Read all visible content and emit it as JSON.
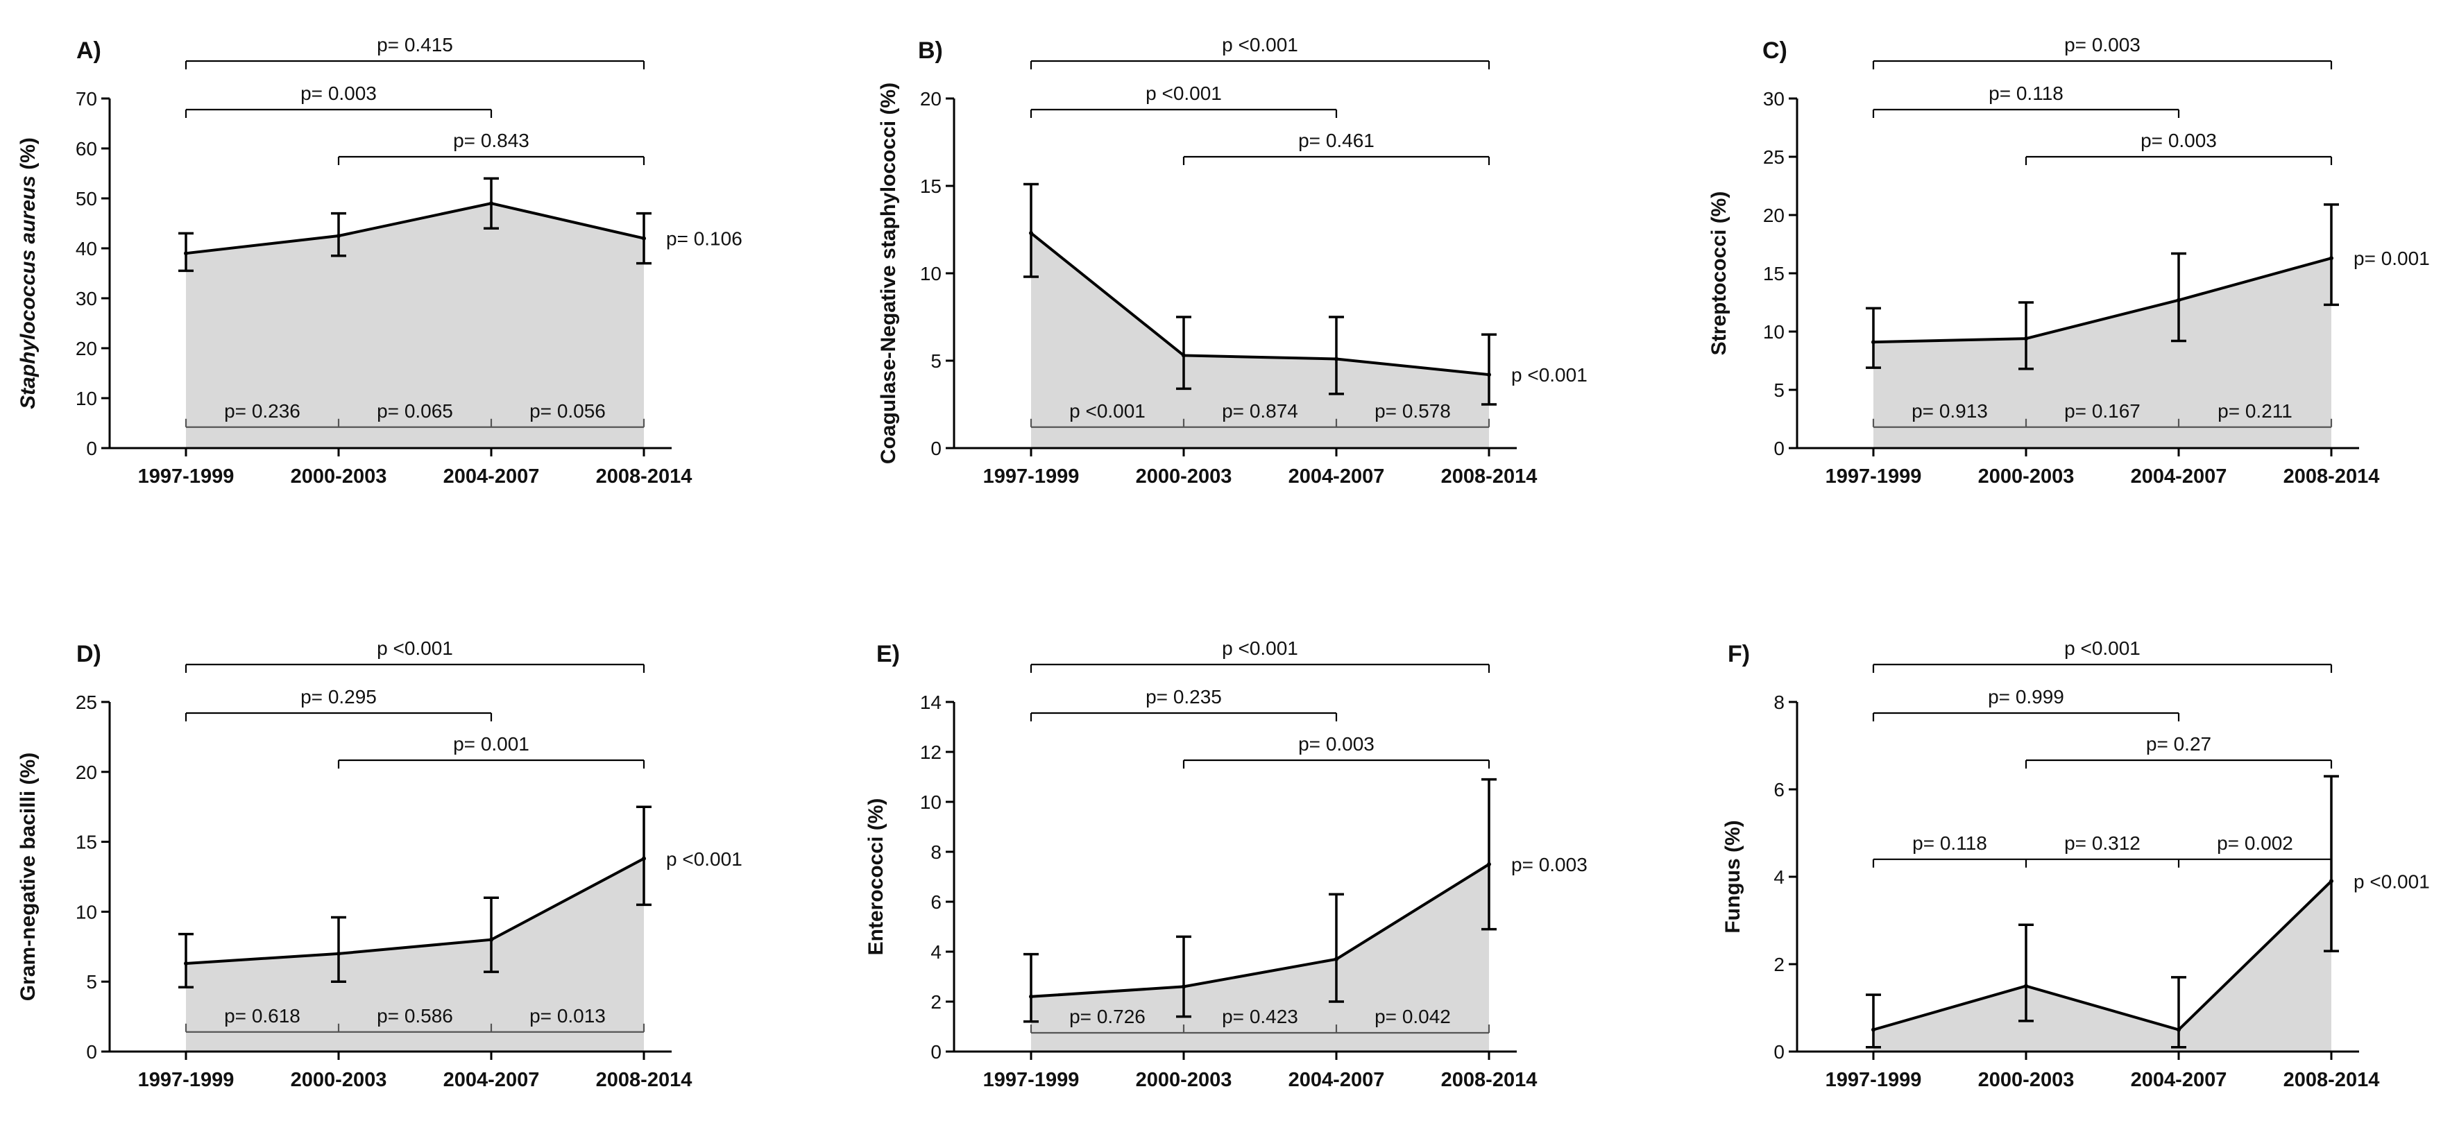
{
  "chart_data": [
    {
      "type": "area",
      "panel": "A)",
      "ylabel": "Staphylococcus aureus (%)",
      "ylabel_italic_part": "Staphylococcus aureus",
      "ylabel_rest": " (%)",
      "ylim": [
        0,
        70
      ],
      "yticks": [
        0,
        10,
        20,
        30,
        40,
        50,
        60,
        70
      ],
      "categories": [
        "1997-1999",
        "2000-2003",
        "2004-2007",
        "2008-2014"
      ],
      "values": [
        39,
        42.5,
        49,
        42
      ],
      "err_low": [
        35.5,
        38.5,
        44,
        37
      ],
      "err_high": [
        43,
        47,
        54,
        47
      ],
      "trend_p": "p= 0.106",
      "top_brackets": [
        {
          "from": 0,
          "to": 3,
          "label": "p= 0.415"
        },
        {
          "from": 0,
          "to": 2,
          "label": "p= 0.003"
        },
        {
          "from": 1,
          "to": 3,
          "label": "p= 0.843"
        }
      ],
      "adjacent": [
        "p= 0.236",
        "p= 0.065",
        "p= 0.056"
      ],
      "adjacent_level": 4.2
    },
    {
      "type": "area",
      "panel": "B)",
      "ylabel": "Coagulase-Negative staphylococci (%)",
      "ylim": [
        0,
        20
      ],
      "yticks": [
        0,
        5,
        10,
        15,
        20
      ],
      "categories": [
        "1997-1999",
        "2000-2003",
        "2004-2007",
        "2008-2014"
      ],
      "values": [
        12.3,
        5.3,
        5.1,
        4.2
      ],
      "err_low": [
        9.8,
        3.4,
        3.1,
        2.5
      ],
      "err_high": [
        15.1,
        7.5,
        7.5,
        6.5
      ],
      "trend_p": "p <0.001",
      "top_brackets": [
        {
          "from": 0,
          "to": 3,
          "label": "p <0.001"
        },
        {
          "from": 0,
          "to": 2,
          "label": "p <0.001"
        },
        {
          "from": 1,
          "to": 3,
          "label": "p= 0.461"
        }
      ],
      "adjacent": [
        "p <0.001",
        "p= 0.874",
        "p= 0.578"
      ],
      "adjacent_level": 1.2
    },
    {
      "type": "area",
      "panel": "C)",
      "ylabel": "Streptococci (%)",
      "ylim": [
        0,
        30
      ],
      "yticks": [
        0,
        5,
        10,
        15,
        20,
        25,
        30
      ],
      "categories": [
        "1997-1999",
        "2000-2003",
        "2004-2007",
        "2008-2014"
      ],
      "values": [
        9.1,
        9.4,
        12.7,
        16.3
      ],
      "err_low": [
        6.9,
        6.8,
        9.2,
        12.3
      ],
      "err_high": [
        12.0,
        12.5,
        16.7,
        20.9
      ],
      "trend_p": "p= 0.001",
      "top_brackets": [
        {
          "from": 0,
          "to": 3,
          "label": "p= 0.003"
        },
        {
          "from": 0,
          "to": 2,
          "label": "p= 0.118"
        },
        {
          "from": 1,
          "to": 3,
          "label": "p= 0.003"
        }
      ],
      "adjacent": [
        "p= 0.913",
        "p= 0.167",
        "p= 0.211"
      ],
      "adjacent_level": 1.8
    },
    {
      "type": "area",
      "panel": "D)",
      "ylabel": "Gram-negative bacilli (%)",
      "ylim": [
        0,
        25
      ],
      "yticks": [
        0,
        5,
        10,
        15,
        20,
        25
      ],
      "categories": [
        "1997-1999",
        "2000-2003",
        "2004-2007",
        "2008-2014"
      ],
      "values": [
        6.3,
        7.0,
        8.0,
        13.8
      ],
      "err_low": [
        4.6,
        5.0,
        5.7,
        10.5
      ],
      "err_high": [
        8.4,
        9.6,
        11.0,
        17.5
      ],
      "trend_p": "p <0.001",
      "top_brackets": [
        {
          "from": 0,
          "to": 3,
          "label": "p <0.001"
        },
        {
          "from": 0,
          "to": 2,
          "label": "p= 0.295"
        },
        {
          "from": 1,
          "to": 3,
          "label": "p= 0.001"
        }
      ],
      "adjacent": [
        "p= 0.618",
        "p= 0.586",
        "p= 0.013"
      ],
      "adjacent_level": 1.4
    },
    {
      "type": "area",
      "panel": "E)",
      "ylabel": "Enterococci (%)",
      "ylim": [
        0,
        14
      ],
      "yticks": [
        0,
        2,
        4,
        6,
        8,
        10,
        12,
        14
      ],
      "categories": [
        "1997-1999",
        "2000-2003",
        "2004-2007",
        "2008-2014"
      ],
      "values": [
        2.2,
        2.6,
        3.7,
        7.5
      ],
      "err_low": [
        1.2,
        1.4,
        2.0,
        4.9
      ],
      "err_high": [
        3.9,
        4.6,
        6.3,
        10.9
      ],
      "trend_p": "p= 0.003",
      "top_brackets": [
        {
          "from": 0,
          "to": 3,
          "label": "p <0.001"
        },
        {
          "from": 0,
          "to": 2,
          "label": "p= 0.235"
        },
        {
          "from": 1,
          "to": 3,
          "label": "p= 0.003"
        }
      ],
      "adjacent": [
        "p= 0.726",
        "p= 0.423",
        "p= 0.042"
      ],
      "adjacent_level": 0.75
    },
    {
      "type": "area",
      "panel": "F)",
      "ylabel": "Fungus (%)",
      "ylim": [
        0,
        8
      ],
      "yticks": [
        0,
        2,
        4,
        6,
        8
      ],
      "categories": [
        "1997-1999",
        "2000-2003",
        "2004-2007",
        "2008-2014"
      ],
      "values": [
        0.5,
        1.5,
        0.5,
        3.9
      ],
      "err_low": [
        0.1,
        0.7,
        0.1,
        2.3
      ],
      "err_high": [
        1.3,
        2.9,
        1.7,
        6.3
      ],
      "trend_p": "p <0.001",
      "top_brackets": [
        {
          "from": 0,
          "to": 3,
          "label": "p <0.001"
        },
        {
          "from": 0,
          "to": 2,
          "label": "p= 0.999"
        },
        {
          "from": 1,
          "to": 3,
          "label": "p= 0.27"
        }
      ],
      "adjacent": [
        "p= 0.118",
        "p= 0.312",
        "p= 0.002"
      ],
      "adjacent_level": 4.4
    }
  ]
}
